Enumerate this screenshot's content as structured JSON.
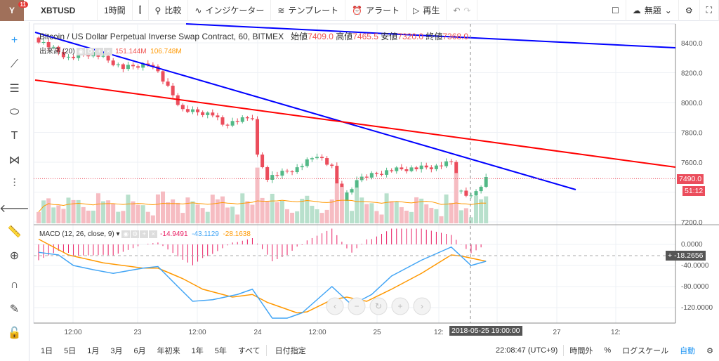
{
  "topbar": {
    "avatar_badge": "11",
    "symbol": "XBTUSD",
    "interval": "1時間",
    "compare": "比較",
    "indicators": "インジケーター",
    "templates": "テンプレート",
    "alert": "アラート",
    "replay": "再生",
    "layout_name": "無題"
  },
  "legend": {
    "title": "Bitcoin / US Dollar Perpetual Inverse Swap Contract, 60, BITMEX",
    "open_label": "始値",
    "open": "7409.0",
    "high_label": "高値",
    "high": "7465.5",
    "low_label": "安値",
    "low": "7320.0",
    "close_label": "終値",
    "close": "7368.0"
  },
  "volume": {
    "label": "出来高 (20)",
    "value": "151.144M",
    "ma": "106.748M"
  },
  "macd": {
    "label": "MACD (12, 26, close, 9)",
    "hist": "-14.9491",
    "macd": "-43.1129",
    "signal": "-28.1638"
  },
  "price_axis": {
    "ticks": [
      "8400.0",
      "8200.0",
      "8000.0",
      "7800.0",
      "7600.0",
      "7200.0"
    ],
    "last_price": "7490.0",
    "countdown": "51:12"
  },
  "macd_axis": {
    "ticks": [
      "0.0000",
      "-40.0000",
      "-80.0000",
      "-120.0000"
    ],
    "crosshair_value": "-18.2656"
  },
  "time_axis": {
    "ticks": [
      "12:00",
      "23",
      "12:00",
      "24",
      "12:00",
      "25",
      "12:",
      "12:00",
      "27",
      "12:"
    ],
    "crosshair": "2018-05-25 19:00:00"
  },
  "bottom": {
    "ranges": [
      "1日",
      "5日",
      "1月",
      "3月",
      "6月",
      "年初来",
      "1年",
      "5年",
      "すべて"
    ],
    "goto_date": "日付指定",
    "clock": "22:08:47 (UTC+9)",
    "session": "時間外",
    "percent": "%",
    "log": "ログスケール",
    "auto": "自動"
  },
  "colors": {
    "up": "#53b987",
    "down": "#eb4d5c",
    "macd": "#42a5f5",
    "signal": "#ff9800",
    "hist": "#e91e63",
    "trend_blue": "#0000ff",
    "trend_red": "#ff0000"
  },
  "chart_data": {
    "type": "candlestick",
    "price_range": [
      7200,
      8400
    ],
    "macd_range": [
      -140,
      20
    ],
    "close_keypoints": [
      [
        0,
        8420
      ],
      [
        6,
        8300
      ],
      [
        11,
        8330
      ],
      [
        17,
        8230
      ],
      [
        23,
        8260
      ],
      [
        25,
        8150
      ],
      [
        29,
        7950
      ],
      [
        35,
        7920
      ],
      [
        37,
        7850
      ],
      [
        43,
        7900
      ],
      [
        44,
        7640
      ],
      [
        46,
        7500
      ],
      [
        52,
        7560
      ],
      [
        56,
        7650
      ],
      [
        59,
        7560
      ],
      [
        61,
        7350
      ],
      [
        65,
        7500
      ],
      [
        71,
        7550
      ],
      [
        80,
        7570
      ],
      [
        83,
        7600
      ],
      [
        84,
        7420
      ],
      [
        87,
        7360
      ],
      [
        90,
        7490
      ]
    ],
    "macd_keypoints": [
      [
        0,
        -15
      ],
      [
        4,
        -20
      ],
      [
        7,
        -40
      ],
      [
        11,
        -48
      ],
      [
        15,
        -55
      ],
      [
        21,
        -45
      ],
      [
        24,
        -42
      ],
      [
        28,
        -80
      ],
      [
        31,
        -108
      ],
      [
        35,
        -105
      ],
      [
        40,
        -95
      ],
      [
        43,
        -85
      ],
      [
        47,
        -140
      ],
      [
        50,
        -140
      ],
      [
        53,
        -130
      ],
      [
        56,
        -105
      ],
      [
        59,
        -80
      ],
      [
        63,
        -115
      ],
      [
        67,
        -95
      ],
      [
        71,
        -60
      ],
      [
        77,
        -30
      ],
      [
        83,
        -5
      ],
      [
        87,
        -40
      ],
      [
        90,
        -32
      ]
    ],
    "signal_keypoints": [
      [
        0,
        10
      ],
      [
        6,
        -20
      ],
      [
        13,
        -35
      ],
      [
        21,
        -45
      ],
      [
        24,
        -45
      ],
      [
        29,
        -65
      ],
      [
        33,
        -85
      ],
      [
        39,
        -100
      ],
      [
        43,
        -95
      ],
      [
        46,
        -110
      ],
      [
        52,
        -130
      ],
      [
        54,
        -128
      ],
      [
        59,
        -105
      ],
      [
        62,
        -100
      ],
      [
        66,
        -108
      ],
      [
        71,
        -85
      ],
      [
        77,
        -55
      ],
      [
        83,
        -20
      ],
      [
        85,
        -22
      ],
      [
        90,
        -32
      ]
    ]
  }
}
